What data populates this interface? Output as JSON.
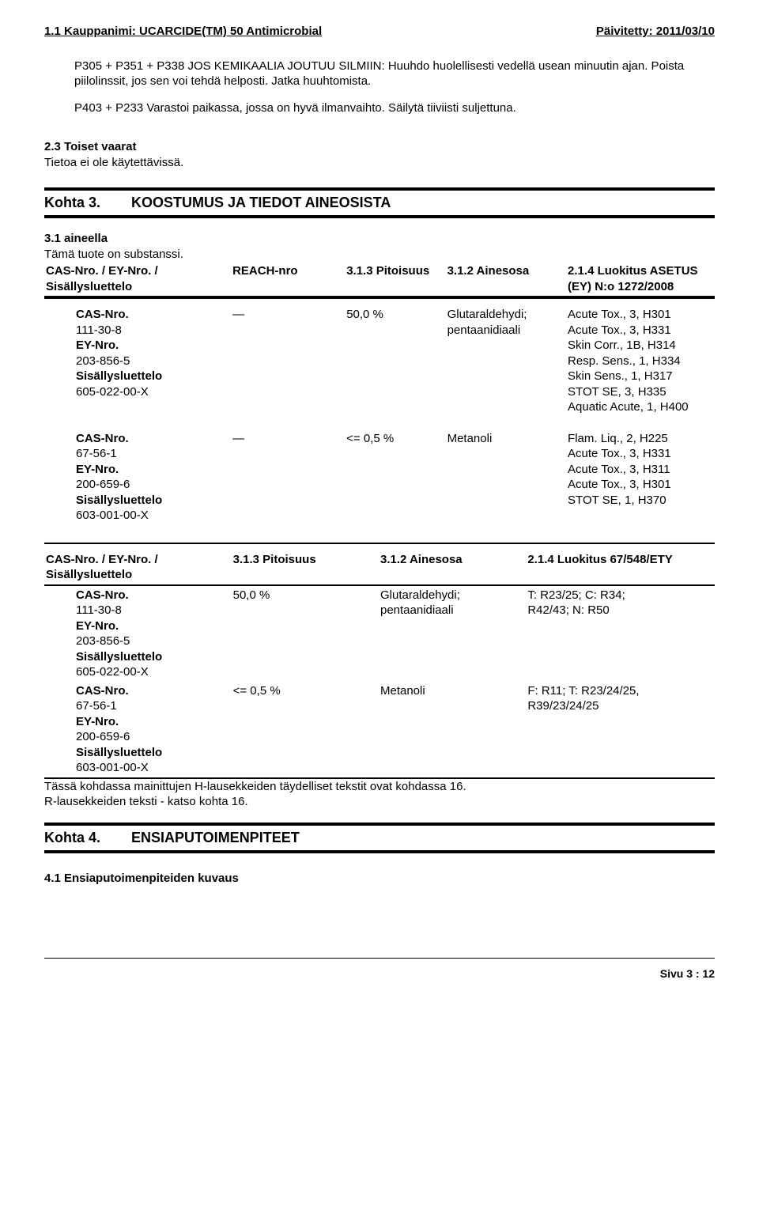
{
  "header": {
    "left": "1.1 Kauppanimi: UCARCIDE(TM) 50 Antimicrobial",
    "right": "Päivitetty: 2011/03/10"
  },
  "p1": "P305 + P351 + P338  JOS KEMIKAALIA JOUTUU SILMIIN: Huuhdo huolellisesti vedellä usean minuutin ajan. Poista piilolinssit, jos sen voi tehdä helposti. Jatka huuhtomista.",
  "p2": "P403 + P233  Varastoi paikassa, jossa on hyvä ilmanvaihto. Säilytä tiiviisti suljettuna.",
  "s23_title": "2.3 Toiset vaarat",
  "s23_body": "Tietoa ei ole käytettävissä.",
  "kohta3": {
    "num": "Kohta 3.",
    "title": "KOOSTUMUS JA TIEDOT AINEOSISTA"
  },
  "s31_title": "3.1 aineella",
  "s31_body": "Tämä tuote on substanssi.",
  "t1": {
    "h1": "CAS-Nro. / EY-Nro. / Sisällysluettelo",
    "h2": "REACH-nro",
    "h3": "3.1.3 Pitoisuus",
    "h4": "3.1.2 Ainesosa",
    "h5": "2.1.4 Luokitus ASETUS (EY) N:o 1272/2008",
    "r1": {
      "c1a": "CAS-Nro.",
      "c1b": "111-30-8",
      "c1c": "EY-Nro.",
      "c1d": "203-856-5",
      "c1e": "Sisällysluettelo",
      "c1f": "605-022-00-X",
      "c2": "—",
      "c3": "50,0 %",
      "c4a": "Glutaraldehydi;",
      "c4b": "pentaanidiaali",
      "c5a": "Acute Tox., 3, H301",
      "c5b": "Acute Tox., 3, H331",
      "c5c": "Skin Corr., 1B, H314",
      "c5d": "Resp. Sens., 1, H334",
      "c5e": "Skin Sens., 1, H317",
      "c5f": "STOT SE, 3, H335",
      "c5g": "Aquatic Acute, 1, H400"
    },
    "r2": {
      "c1a": "CAS-Nro.",
      "c1b": "67-56-1",
      "c1c": "EY-Nro.",
      "c1d": "200-659-6",
      "c1e": "Sisällysluettelo",
      "c1f": "603-001-00-X",
      "c2": "—",
      "c3": "<= 0,5 %",
      "c4": "Metanoli",
      "c5a": "Flam. Liq., 2, H225",
      "c5b": "Acute Tox., 3, H331",
      "c5c": "Acute Tox., 3, H311",
      "c5d": "Acute Tox., 3, H301",
      "c5e": "STOT SE, 1, H370"
    }
  },
  "t2": {
    "h1": "CAS-Nro. / EY-Nro. / Sisällysluettelo",
    "h2": "3.1.3 Pitoisuus",
    "h3": "3.1.2 Ainesosa",
    "h4": "2.1.4 Luokitus 67/548/ETY",
    "r1": {
      "c1a": "CAS-Nro.",
      "c1b": "111-30-8",
      "c1c": "EY-Nro.",
      "c1d": "203-856-5",
      "c1e": "Sisällysluettelo",
      "c1f": "605-022-00-X",
      "c2": "50,0 %",
      "c3a": "Glutaraldehydi;",
      "c3b": "pentaanidiaali",
      "c4a": "T: R23/25; C: R34;",
      "c4b": "R42/43; N: R50"
    },
    "r2": {
      "c1a": "CAS-Nro.",
      "c1b": "67-56-1",
      "c1c": "EY-Nro.",
      "c1d": "200-659-6",
      "c1e": "Sisällysluettelo",
      "c1f": "603-001-00-X",
      "c2": "<= 0,5 %",
      "c3": "Metanoli",
      "c4a": "F: R11; T: R23/24/25,",
      "c4b": "R39/23/24/25"
    }
  },
  "note1": "Tässä kohdassa mainittujen H-lausekkeiden täydelliset tekstit ovat kohdassa 16.",
  "note2": "R-lausekkeiden teksti - katso kohta 16.",
  "kohta4": {
    "num": "Kohta 4.",
    "title": "ENSIAPUTOIMENPITEET"
  },
  "s41": "4.1 Ensiaputoimenpiteiden kuvaus",
  "footer": "Sivu 3 : 12"
}
